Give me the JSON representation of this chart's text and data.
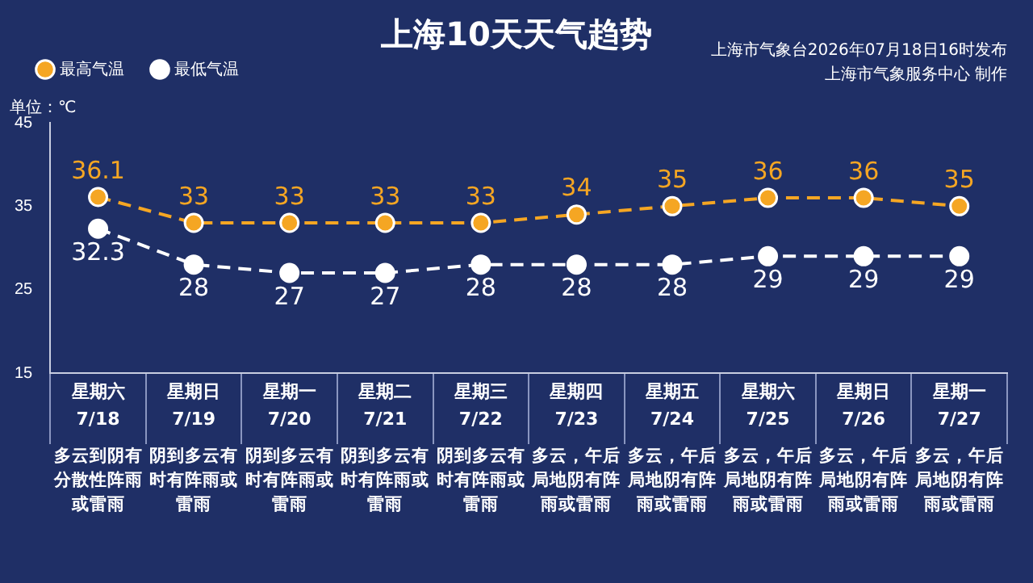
{
  "chart_data": {
    "type": "line",
    "title": "上海10天天气趋势",
    "ylabel": "单位：℃",
    "annotations": [
      "上海市气象台2026年07月18日16时发布",
      "上海市气象服务中心  制作"
    ],
    "categories": [
      "星期六\n7/18\n多云到阴有分散性阵雨或雷雨",
      "星期日\n7/19\n阴到多云有时有阵雨或雷雨",
      "星期一\n7/20\n阴到多云有时有阵雨或雷雨",
      "星期二\n7/21\n阴到多云有时有阵雨或雷雨",
      "星期三\n7/22\n阴到多云有时有阵雨或雷雨",
      "星期四\n7/23\n多云，午后局地阴有阵雨或雷雨",
      "星期五\n7/24\n多云，午后局地阴有阵雨或雷雨",
      "星期六\n7/25\n多云，午后局地阴有阵雨或雷雨",
      "星期日\n7/26\n多云，午后局地阴有阵雨或雷雨",
      "星期一\n7/27\n多云，午后局地阴有阵雨或雷雨"
    ],
    "series": [
      {
        "name": "最高气温",
        "color": "#f5a623",
        "values": [
          36.1,
          33,
          33,
          33,
          33,
          34,
          35,
          36,
          36,
          35
        ]
      },
      {
        "name": "最低气温",
        "color": "#ffffff",
        "values": [
          32.3,
          28,
          27,
          27,
          28,
          28,
          28,
          29,
          29,
          29
        ]
      }
    ],
    "ylim": [
      15,
      45
    ],
    "yticks": [
      15,
      25,
      35,
      45
    ],
    "legend": "top left",
    "marker": "circle",
    "line_style": "dashed",
    "data_labels": true
  }
}
